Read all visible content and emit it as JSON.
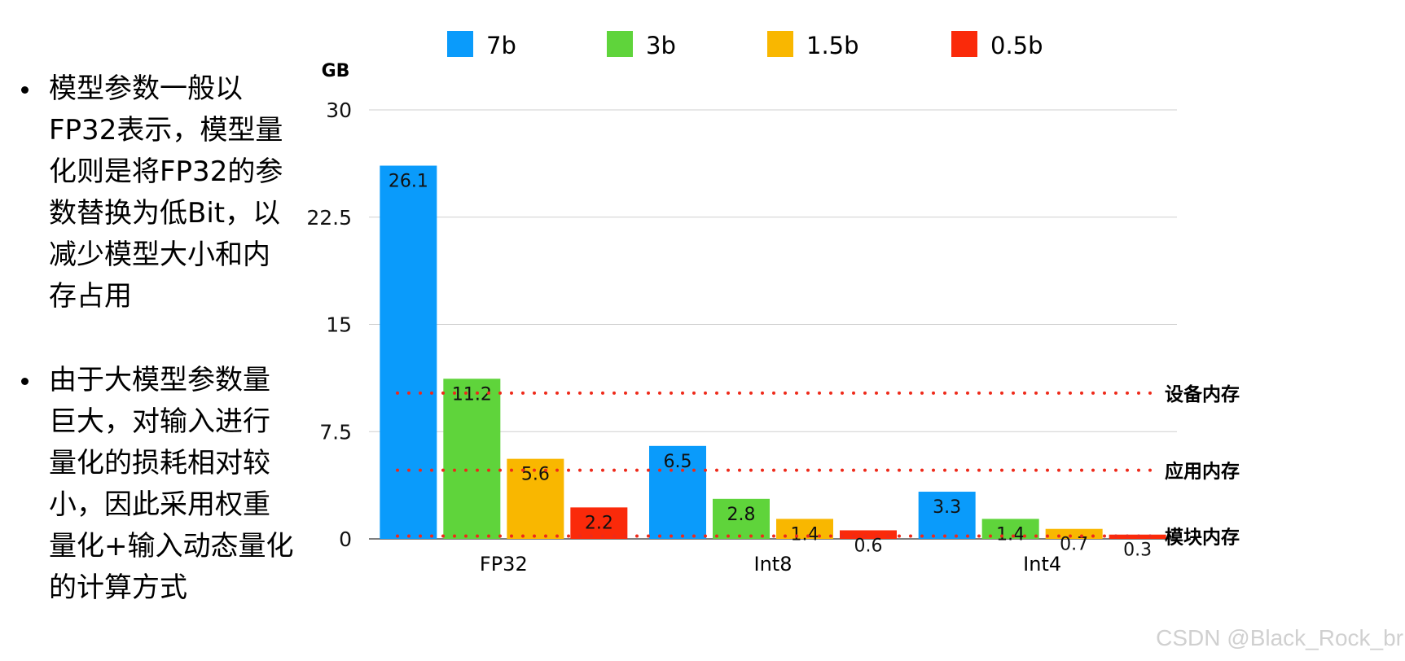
{
  "bullets": [
    "模型参数一般以FP32表示，模型量化则是将FP32的参数替换为低Bit，以减少模型大小和内存占用",
    "由于大模型参数量巨大，对输入进行量化的损耗相对较小，因此采用权重量化+输入动态量化的计算方式"
  ],
  "watermark": "CSDN @Black_Rock_br",
  "chart_data": {
    "type": "bar",
    "title": "",
    "xlabel": "",
    "ylabel": "GB",
    "ylim": [
      0,
      30
    ],
    "yticks": [
      "0",
      "7.5",
      "15",
      "22.5",
      "30"
    ],
    "ytick_values": [
      0,
      7.5,
      15,
      22.5,
      30
    ],
    "grid": true,
    "legend": "top",
    "categories": [
      "FP32",
      "Int8",
      "Int4"
    ],
    "series": [
      {
        "name": "7b",
        "color": "#0a9bfb",
        "values": [
          26.1,
          6.5,
          3.3
        ]
      },
      {
        "name": "3b",
        "color": "#5fd43b",
        "values": [
          11.2,
          2.8,
          1.4
        ]
      },
      {
        "name": "1.5b",
        "color": "#f9b700",
        "values": [
          5.6,
          1.4,
          0.7
        ]
      },
      {
        "name": "0.5b",
        "color": "#fa2a0a",
        "values": [
          2.2,
          0.6,
          0.3
        ]
      }
    ],
    "reference_lines": [
      {
        "label": "设备内存",
        "value": 10.2,
        "color": "#ee2a1a"
      },
      {
        "label": "应用内存",
        "value": 4.8,
        "color": "#ee2a1a"
      },
      {
        "label": "模块内存",
        "value": 0.2,
        "color": "#ee2a1a"
      }
    ]
  }
}
